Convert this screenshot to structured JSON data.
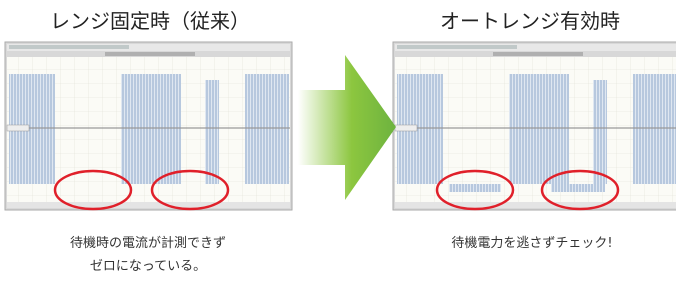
{
  "left": {
    "title": "レンジ固定時（従来）",
    "caption": [
      "待機時の電流が計測できず",
      "ゼロになっている。"
    ]
  },
  "right": {
    "title": "オートレンジ有効時",
    "caption": [
      "待機電力を逃さずチェック!"
    ]
  }
}
